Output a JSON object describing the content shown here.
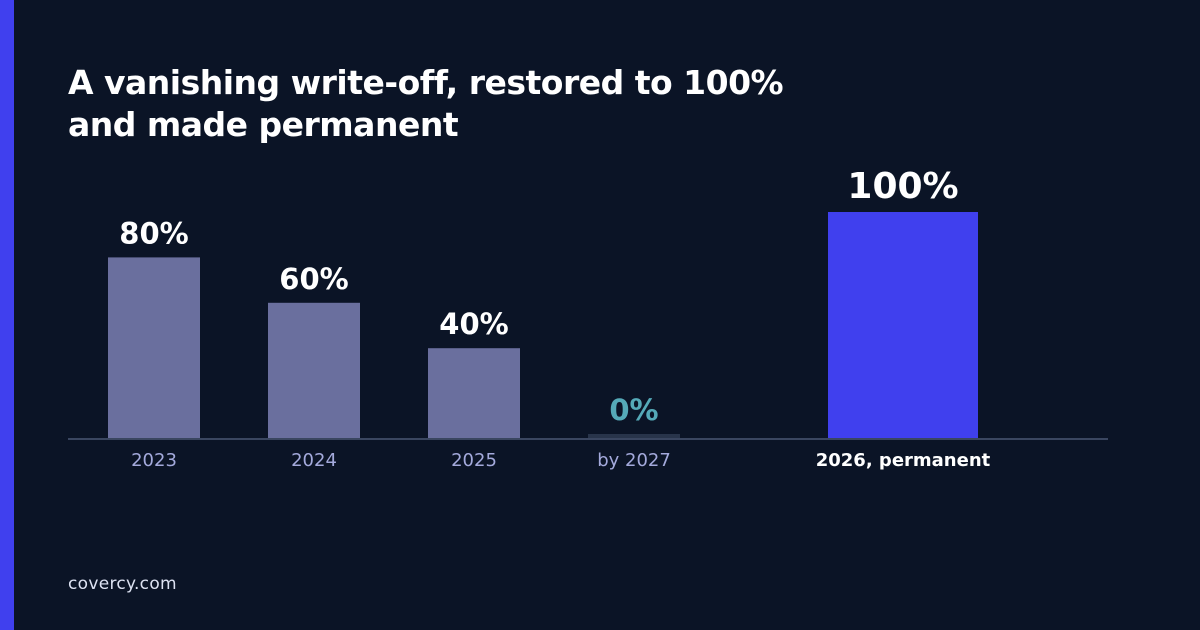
{
  "title": "A vanishing write-off, restored to 100% and made permanent",
  "footer": {
    "brand": "covercy.com"
  },
  "colors": {
    "background": "#0b1426",
    "accent": "#4040ee",
    "bar_past": "#6a6f9e",
    "bar_zero": "#28344a",
    "bar_highlight": "#4040ee",
    "label_zero": "#55aab8",
    "category_label": "#a4aadc",
    "axis": "#3a4660"
  },
  "chart_data": {
    "type": "bar",
    "title": "A vanishing write-off, restored to 100% and made permanent",
    "categories": [
      "2023",
      "2024",
      "2025",
      "by 2027",
      "2026, permanent"
    ],
    "values": [
      80,
      60,
      40,
      0,
      100
    ],
    "data_labels": [
      "80%",
      "60%",
      "40%",
      "0%",
      "100%"
    ],
    "highlight": "2026, permanent",
    "ylim": [
      0,
      100
    ],
    "grid": false,
    "legend": "none"
  }
}
